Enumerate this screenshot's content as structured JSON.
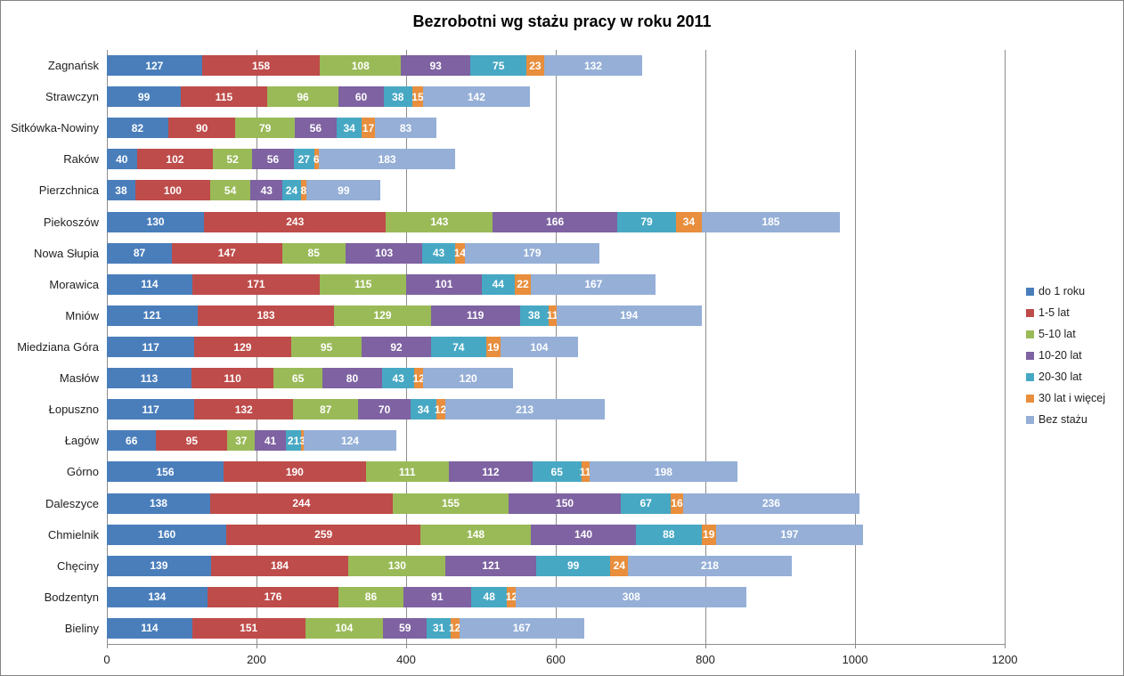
{
  "chart_data": {
    "type": "bar",
    "orientation": "horizontal",
    "stacked": true,
    "title": "Bezrobotni wg stażu pracy w roku 2011",
    "categories": [
      "Zagnańsk",
      "Strawczyn",
      "Sitkówka-Nowiny",
      "Raków",
      "Pierzchnica",
      "Piekoszów",
      "Nowa Słupia",
      "Morawica",
      "Mniów",
      "Miedziana Góra",
      "Masłów",
      "Łopuszno",
      "Łagów",
      "Górno",
      "Daleszyce",
      "Chmielnik",
      "Chęciny",
      "Bodzentyn",
      "Bieliny"
    ],
    "series": [
      {
        "name": "do 1 roku",
        "color": "#4A7EBB",
        "values": [
          127,
          99,
          82,
          40,
          38,
          130,
          87,
          114,
          121,
          117,
          113,
          117,
          66,
          156,
          138,
          160,
          139,
          134,
          114
        ]
      },
      {
        "name": "1-5 lat",
        "color": "#BE4C4A",
        "values": [
          158,
          115,
          90,
          102,
          100,
          243,
          147,
          171,
          183,
          129,
          110,
          132,
          95,
          190,
          244,
          259,
          184,
          176,
          151
        ]
      },
      {
        "name": "5-10 lat",
        "color": "#9ABA58",
        "values": [
          108,
          96,
          79,
          52,
          54,
          143,
          85,
          115,
          129,
          95,
          65,
          87,
          37,
          111,
          155,
          148,
          130,
          86,
          104
        ]
      },
      {
        "name": "10-20 lat",
        "color": "#7E62A1",
        "values": [
          93,
          60,
          56,
          56,
          43,
          166,
          103,
          101,
          119,
          92,
          80,
          70,
          41,
          112,
          150,
          140,
          121,
          91,
          59
        ]
      },
      {
        "name": "20-30 lat",
        "color": "#47A8C4",
        "values": [
          75,
          38,
          34,
          27,
          24,
          79,
          43,
          44,
          38,
          74,
          43,
          34,
          21,
          65,
          67,
          88,
          99,
          48,
          31
        ]
      },
      {
        "name": "30 lat i więcej",
        "color": "#E88E3C",
        "values": [
          23,
          15,
          17,
          6,
          8,
          34,
          14,
          22,
          11,
          19,
          12,
          12,
          3,
          11,
          16,
          19,
          24,
          12,
          12
        ]
      },
      {
        "name": "Bez stażu",
        "color": "#95AFD7",
        "values": [
          132,
          142,
          83,
          183,
          99,
          185,
          179,
          167,
          194,
          104,
          120,
          213,
          124,
          198,
          236,
          197,
          218,
          308,
          167
        ]
      }
    ],
    "x_ticks": [
      0,
      200,
      400,
      600,
      800,
      1000,
      1200
    ],
    "xlim": [
      0,
      1200
    ],
    "grid": "vertical",
    "legend_position": "right",
    "data_labels": "segment values, white bold, centered",
    "axis_color": "#8d8d8d",
    "text_color": "#1f1f1f"
  }
}
